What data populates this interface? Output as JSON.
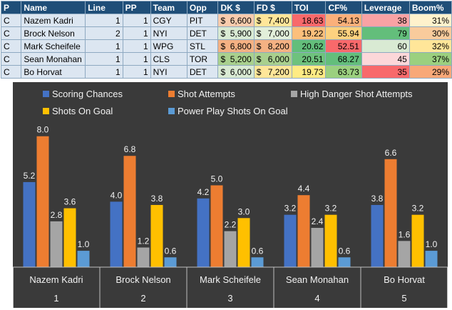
{
  "table": {
    "headers": [
      "P",
      "Name",
      "Line",
      "PP",
      "Team",
      "Opp",
      "DK $",
      "FD $",
      "TOI",
      "CF%",
      "Leverage",
      "Boom%"
    ],
    "rows": [
      {
        "pos": "C",
        "name": "Nazem Kadri",
        "line": "1",
        "pp": "1",
        "team": "CGY",
        "opp": "PIT",
        "dk": "6,600",
        "fd": "7,400",
        "toi": "18.63",
        "cf": "54.13",
        "leverage": "38",
        "boom": "31%"
      },
      {
        "pos": "C",
        "name": "Brock Nelson",
        "line": "2",
        "pp": "1",
        "team": "NYI",
        "opp": "DET",
        "dk": "5,900",
        "fd": "7,000",
        "toi": "19.22",
        "cf": "55.94",
        "leverage": "79",
        "boom": "30%"
      },
      {
        "pos": "C",
        "name": "Mark Scheifele",
        "line": "1",
        "pp": "1",
        "team": "WPG",
        "opp": "STL",
        "dk": "6,800",
        "fd": "8,200",
        "toi": "20.62",
        "cf": "52.51",
        "leverage": "60",
        "boom": "32%"
      },
      {
        "pos": "C",
        "name": "Sean Monahan",
        "line": "1",
        "pp": "1",
        "team": "CLS",
        "opp": "TOR",
        "dk": "5,200",
        "fd": "6,000",
        "toi": "20.51",
        "cf": "68.27",
        "leverage": "45",
        "boom": "37%"
      },
      {
        "pos": "C",
        "name": "Bo Horvat",
        "line": "1",
        "pp": "1",
        "team": "NYI",
        "opp": "DET",
        "dk": "6,000",
        "fd": "7,200",
        "toi": "19.73",
        "cf": "63.73",
        "leverage": "35",
        "boom": "29%"
      }
    ],
    "currency_symbol": "$",
    "cell_colors": {
      "dk": [
        "#f8cbad",
        "#d9ead3",
        "#f4b183",
        "#a9d08e",
        "#d9ead3"
      ],
      "fd": [
        "#ffe699",
        "#e2efda",
        "#f4b183",
        "#a9d08e",
        "#ffe699"
      ],
      "toi": [
        "#f8696b",
        "#fcbf7b",
        "#63be7b",
        "#6ec27d",
        "#ffeb84"
      ],
      "cf": [
        "#fbb07a",
        "#fdd27f",
        "#f8696b",
        "#63be7b",
        "#9bd07f"
      ],
      "leverage": [
        "#f9a2a4",
        "#63be7b",
        "#d9ead3",
        "#fcd7d9",
        "#f8696b"
      ],
      "boom": [
        "#fff2cc",
        "#f9cb9c",
        "#ffe699",
        "#9bd07f",
        "#f8a878"
      ]
    }
  },
  "chart_data": {
    "type": "bar",
    "title": "",
    "legend_position": "top",
    "categories": [
      {
        "label": "Nazem Kadri",
        "sub": "1"
      },
      {
        "label": "Brock Nelson",
        "sub": "2"
      },
      {
        "label": "Mark Scheifele",
        "sub": "3"
      },
      {
        "label": "Sean Monahan",
        "sub": "4"
      },
      {
        "label": "Bo Horvat",
        "sub": "5"
      }
    ],
    "series": [
      {
        "name": "Scoring Chances",
        "color": "#4472c4",
        "values": [
          5.2,
          4.0,
          4.2,
          3.2,
          3.8
        ]
      },
      {
        "name": "Shot Attempts",
        "color": "#ed7d31",
        "values": [
          8.0,
          6.8,
          5.0,
          4.4,
          6.6
        ]
      },
      {
        "name": "High Danger Shot Attempts",
        "color": "#a5a5a5",
        "values": [
          2.8,
          1.2,
          2.2,
          2.4,
          1.6
        ]
      },
      {
        "name": "Shots On Goal",
        "color": "#ffc000",
        "values": [
          3.6,
          3.8,
          3.0,
          3.2,
          3.2
        ]
      },
      {
        "name": "Power Play Shots On Goal",
        "color": "#5b9bd5",
        "values": [
          1.0,
          0.6,
          0.6,
          0.6,
          1.0
        ]
      }
    ],
    "ylim": [
      0,
      8.6
    ],
    "grid": false,
    "value_format": "0.0"
  }
}
